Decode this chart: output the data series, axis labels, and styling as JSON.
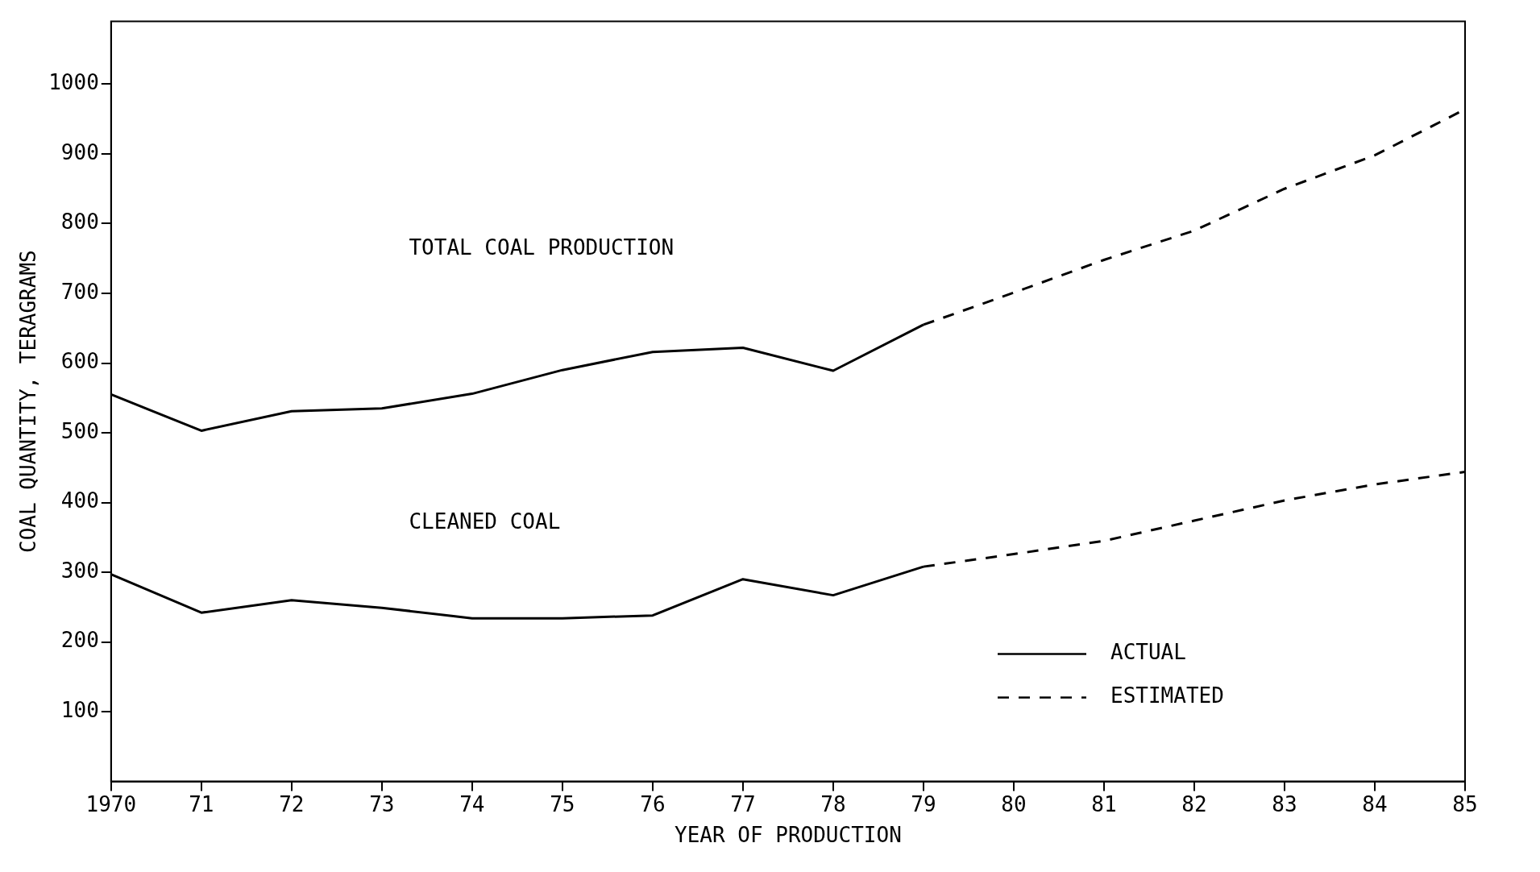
{
  "chart_data": {
    "type": "line",
    "xlabel": "YEAR OF PRODUCTION",
    "ylabel": "COAL QUANTITY, TERAGRAMS",
    "xlim": [
      1970,
      1985
    ],
    "xticks": [
      1970,
      {
        "value": 1971,
        "label": "71"
      },
      {
        "value": 1972,
        "label": "72"
      },
      {
        "value": 1973,
        "label": "73"
      },
      {
        "value": 1974,
        "label": "74"
      },
      {
        "value": 1975,
        "label": "75"
      },
      {
        "value": 1976,
        "label": "76"
      },
      {
        "value": 1977,
        "label": "77"
      },
      {
        "value": 1978,
        "label": "78"
      },
      {
        "value": 1979,
        "label": "79"
      },
      {
        "value": 1980,
        "label": "80"
      },
      {
        "value": 1981,
        "label": "81"
      },
      {
        "value": 1982,
        "label": "82"
      },
      {
        "value": 1983,
        "label": "83"
      },
      {
        "value": 1984,
        "label": "84"
      },
      {
        "value": 1985,
        "label": "85"
      }
    ],
    "ylim": [
      0,
      1090
    ],
    "yticks": [
      100,
      200,
      300,
      400,
      500,
      600,
      700,
      800,
      900,
      1000
    ],
    "grid": false,
    "legend": "bottom right",
    "marker": "none",
    "series": [
      {
        "name": "ACTUAL",
        "color": "#000000",
        "line_style": "solid",
        "x": [
          1970,
          1971,
          1972,
          1973,
          1974,
          1975,
          1976,
          1977,
          1978,
          1979
        ],
        "values": [
          555,
          503,
          531,
          535,
          556,
          590,
          616,
          622,
          589,
          655
        ]
      },
      {
        "name": "ESTIMATED",
        "color": "#000000",
        "line_style": "dashed",
        "x": [
          1979,
          1980,
          1981,
          1982,
          1983,
          1984,
          1985
        ],
        "values": [
          655,
          701,
          748,
          790,
          850,
          898,
          964
        ]
      },
      {
        "color": "#000000",
        "line_style": "solid",
        "x": [
          1970,
          1971,
          1972,
          1973,
          1974,
          1975,
          1976,
          1977,
          1978,
          1979
        ],
        "values": [
          297,
          242,
          260,
          249,
          234,
          234,
          238,
          290,
          267,
          308
        ]
      },
      {
        "color": "#000000",
        "line_style": "dashed",
        "x": [
          1979,
          1980,
          1981,
          1982,
          1983,
          1984,
          1985
        ],
        "values": [
          308,
          326,
          345,
          374,
          403,
          426,
          444
        ]
      }
    ],
    "annotations": [
      "TOTAL COAL PRODUCTION",
      "CLEANED COAL"
    ]
  }
}
